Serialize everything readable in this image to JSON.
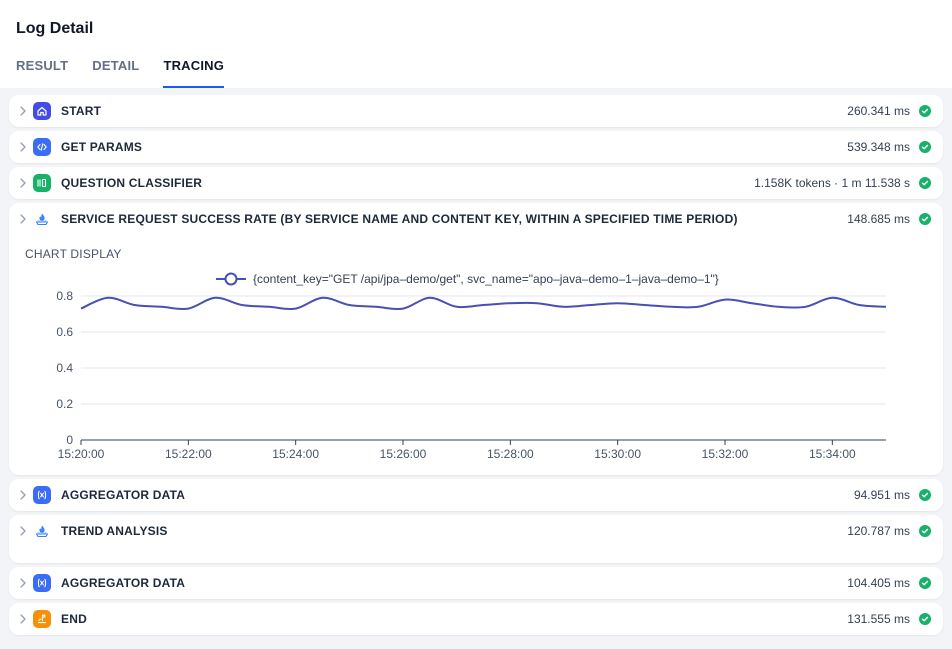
{
  "header": {
    "title": "Log Detail",
    "tabs": [
      {
        "label": "RESULT",
        "active": false
      },
      {
        "label": "DETAIL",
        "active": false
      },
      {
        "label": "TRACING",
        "active": true
      }
    ]
  },
  "colors": {
    "accent": "#155eef",
    "success": "#17b26a",
    "series": "#4a4fb4",
    "icon_blue": "#3b6cf6",
    "icon_indigo": "#444ce7",
    "icon_green": "#16b364",
    "icon_orange": "#f79009"
  },
  "nodes": [
    {
      "label": "START",
      "meta": "260.341 ms",
      "icon": "home-icon",
      "icon_color": "#444ce7",
      "status": "success"
    },
    {
      "label": "GET PARAMS",
      "meta": "539.348 ms",
      "icon": "code-icon",
      "icon_color": "#3b6cf6",
      "status": "success"
    },
    {
      "label": "QUESTION CLASSIFIER",
      "meta": "1.158K tokens · 1 m 11.538 s",
      "icon": "classifier-icon",
      "icon_color": "#16b364",
      "status": "success"
    },
    {
      "label": "SERVICE REQUEST SUCCESS RATE (BY SERVICE NAME AND CONTENT KEY, WITHIN A SPECIFIED TIME PERIOD)",
      "meta": "148.685 ms",
      "icon": "flame-tool-icon",
      "icon_color": "#3b6cf6",
      "status": "success",
      "expanded": true,
      "chart_heading": "CHART DISPLAY"
    },
    {
      "label": "AGGREGATOR DATA",
      "meta": "94.951 ms",
      "icon": "variable-icon",
      "icon_color": "#3b6cf6",
      "status": "success"
    },
    {
      "label": "TREND ANALYSIS",
      "meta": "120.787 ms",
      "icon": "flame-tool-icon",
      "icon_color": "#3b6cf6",
      "status": "success"
    },
    {
      "label": "AGGREGATOR DATA",
      "meta": "104.405 ms",
      "icon": "variable-icon",
      "icon_color": "#3b6cf6",
      "status": "success"
    },
    {
      "label": "END",
      "meta": "131.555 ms",
      "icon": "end-icon",
      "icon_color": "#f79009",
      "status": "success"
    }
  ],
  "chart_data": {
    "type": "line",
    "title": "",
    "xlabel": "",
    "ylabel": "",
    "legend_position": "top-center",
    "grid": true,
    "ylim": [
      0,
      0.8
    ],
    "y_ticks": [
      "0",
      "0.2",
      "0.4",
      "0.6",
      "0.8"
    ],
    "x_ticks": [
      "15:20:00",
      "15:22:00",
      "15:24:00",
      "15:26:00",
      "15:28:00",
      "15:30:00",
      "15:32:00",
      "15:34:00"
    ],
    "x_minutes_range": [
      "15:20:00",
      "15:35:00"
    ],
    "series": [
      {
        "name": "{content_key=\"GET /api/jpa–demo/get\", svc_name=\"apo–java–demo–1–java–demo–1\"}",
        "x": [
          "15:20:00",
          "15:20:30",
          "15:21:00",
          "15:21:30",
          "15:22:00",
          "15:22:30",
          "15:23:00",
          "15:23:30",
          "15:24:00",
          "15:24:30",
          "15:25:00",
          "15:25:30",
          "15:26:00",
          "15:26:30",
          "15:27:00",
          "15:27:30",
          "15:28:00",
          "15:28:30",
          "15:29:00",
          "15:29:30",
          "15:30:00",
          "15:30:30",
          "15:31:00",
          "15:31:30",
          "15:32:00",
          "15:32:30",
          "15:33:00",
          "15:33:30",
          "15:34:00",
          "15:34:30",
          "15:35:00"
        ],
        "values": [
          0.73,
          0.79,
          0.75,
          0.74,
          0.73,
          0.79,
          0.75,
          0.74,
          0.73,
          0.79,
          0.75,
          0.74,
          0.73,
          0.79,
          0.74,
          0.75,
          0.76,
          0.76,
          0.74,
          0.75,
          0.76,
          0.75,
          0.74,
          0.74,
          0.78,
          0.76,
          0.74,
          0.74,
          0.79,
          0.75,
          0.74
        ]
      }
    ]
  }
}
